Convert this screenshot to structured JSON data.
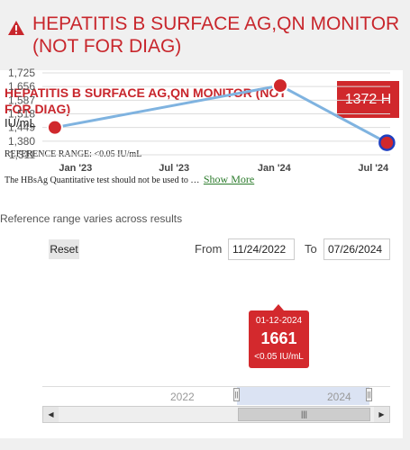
{
  "header": {
    "icon": "warning-triangle-icon",
    "title": "HEPATITIS B SURFACE AG,QN MONITOR (NOT FOR DIAG)"
  },
  "result": {
    "test_name": "HEPATITIS B SURFACE AG,QN MONITOR (NOT FOR DIAG)",
    "value_badge": "1372 H",
    "units": "IU/mL",
    "reference_range": "REFERENCE RANGE: <0.05 IU/mL",
    "note": "The HBsAg Quantitative test should not be used to",
    "ellipsis": "…",
    "show_more": "Show More"
  },
  "chart_controls": {
    "varies_text": "Reference range varies across results",
    "reset_label": "Reset",
    "from_label": "From",
    "from_value": "11/24/2022",
    "to_label": "To",
    "to_value": "07/26/2024"
  },
  "chart_data": {
    "type": "line",
    "y_ticks": [
      "1,725",
      "1,656",
      "1,587",
      "1,518",
      "1,449",
      "1,380",
      "1,311"
    ],
    "x_ticks": [
      "Jan '23",
      "Jul '23",
      "Jan '24",
      "Jul '24"
    ],
    "ylim": [
      1311,
      1725
    ],
    "grid": true,
    "series": [
      {
        "points": [
          {
            "x": "2022-11-24",
            "y": 1449
          },
          {
            "x": "2024-01-12",
            "y": 1661
          },
          {
            "x": "2024-07-26",
            "y": 1372
          }
        ]
      }
    ],
    "tooltip": {
      "date": "01-12-2024",
      "value": "1661",
      "unit": "<0.05 IU/mL"
    },
    "colors": {
      "line": "#7fb3e0",
      "point": "#d0282c",
      "highlight_ring": "#1f3fc0"
    }
  },
  "navigator": {
    "labels": [
      "2022",
      "2024"
    ],
    "left_handle": "||",
    "right_handle": "||"
  },
  "scrollbar": {
    "left_arrow": "◀",
    "right_arrow": "▶",
    "thumb_grip": "|||"
  }
}
